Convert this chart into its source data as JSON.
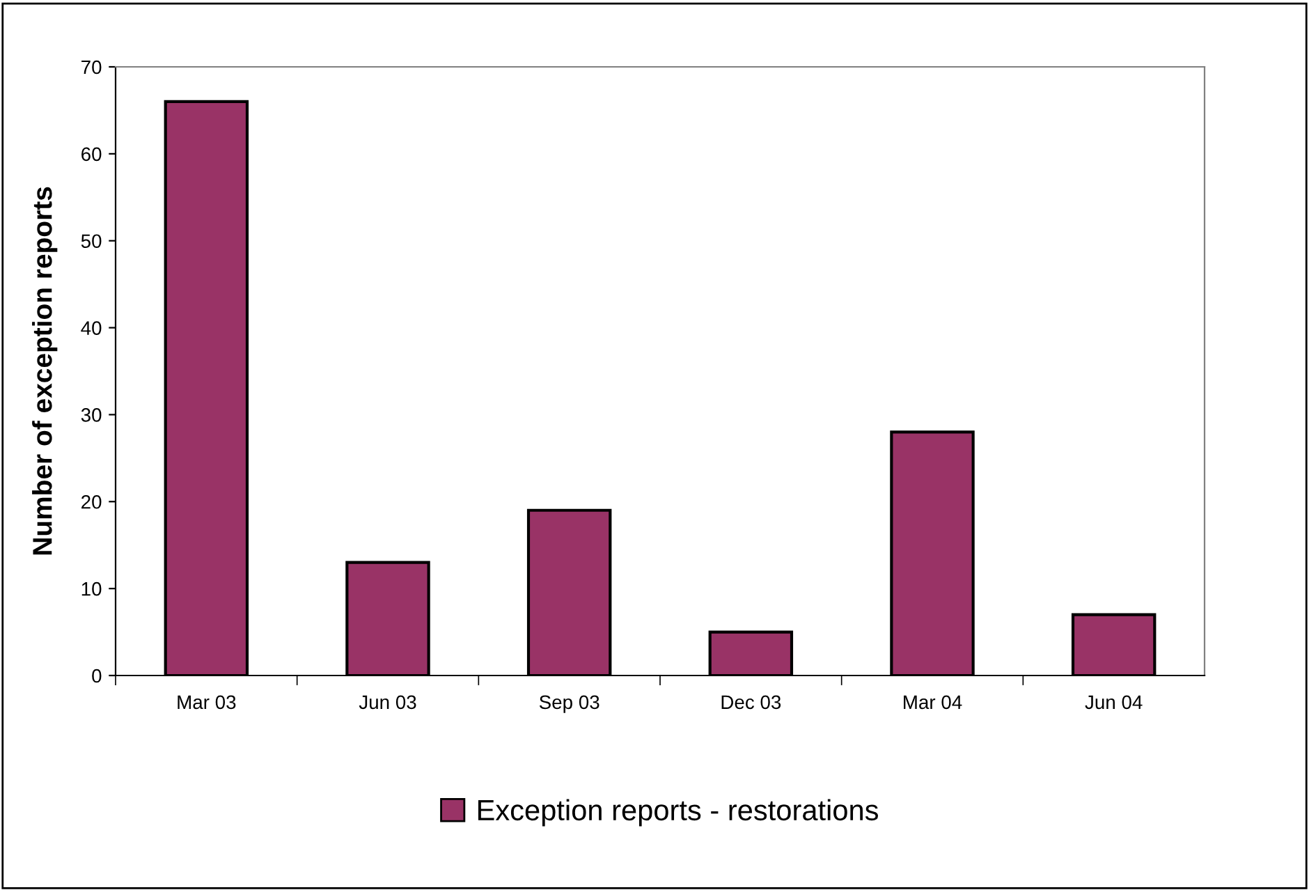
{
  "chart_data": {
    "type": "bar",
    "ylabel": "Number of exception reports",
    "categories": [
      "Mar 03",
      "Jun 03",
      "Sep 03",
      "Dec 03",
      "Mar 04",
      "Jun 04"
    ],
    "series": [
      {
        "name": "Exception reports - restorations",
        "color": "#993366",
        "values": [
          66,
          13,
          19,
          5,
          28,
          7
        ]
      }
    ],
    "ylim": [
      0,
      70
    ],
    "yticks": [
      0,
      10,
      20,
      30,
      40,
      50,
      60,
      70
    ],
    "grid": false,
    "legend": "bottom"
  }
}
